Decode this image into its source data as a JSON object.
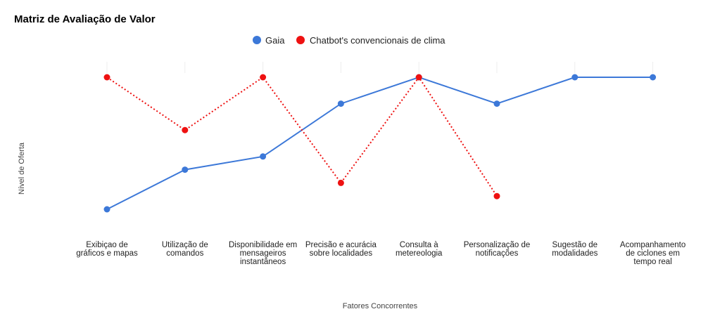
{
  "chart_data": {
    "type": "line",
    "title": "Matriz de Avaliação de Valor",
    "xlabel": "Fatores Concorrentes",
    "ylabel": "Nível de Oferta",
    "ylim": [
      1,
      5
    ],
    "grid": false,
    "legend_position": "top-center",
    "categories": [
      "Exibiçao de gráficos e mapas",
      "Utilização de comandos",
      "Disponibilidade em mensageiros instantâneos",
      "Precisão e acurácia sobre localidades",
      "Consulta à metereologia",
      "Personalização de notificações",
      "Sugestão de modalidades",
      "Acompanhamento de ciclones em tempo real"
    ],
    "category_lines": [
      [
        "Exibiçao de",
        "gráficos e mapas"
      ],
      [
        "Utilização de",
        "comandos"
      ],
      [
        "Disponibilidade em",
        "mensageiros",
        "instantâneos"
      ],
      [
        "Precisão e acurácia",
        "sobre localidades"
      ],
      [
        "Consulta à",
        "metereologia"
      ],
      [
        "Personalização de",
        "notificações"
      ],
      [
        "Sugestão de",
        "modalidades"
      ],
      [
        "Acompanhamento",
        "de ciclones em",
        "tempo real"
      ]
    ],
    "series": [
      {
        "name": "Gaia",
        "color": "#3c78d8",
        "dash": "solid",
        "values": [
          1.0,
          2.2,
          2.6,
          4.2,
          5.0,
          4.2,
          5.0,
          5.0
        ]
      },
      {
        "name": "Chatbot's convencionais de clima",
        "color": "#ee1111",
        "dash": "dotted",
        "values": [
          5.0,
          3.4,
          5.0,
          1.8,
          5.0,
          1.4,
          null,
          null
        ]
      }
    ]
  }
}
